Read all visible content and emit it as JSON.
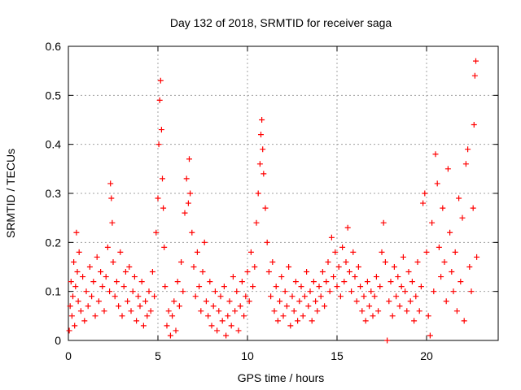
{
  "chart_data": {
    "type": "scatter",
    "title": "Day 132 of 2018, SRMTID for receiver saga",
    "xlabel": "GPS time / hours",
    "ylabel": "SRMTID / TECUs",
    "xlim": [
      0,
      24
    ],
    "ylim": [
      0,
      0.6
    ],
    "xticks": [
      0,
      5,
      10,
      15,
      20
    ],
    "xtick_labels": [
      "0",
      "5",
      "10",
      "15",
      "20"
    ],
    "yticks": [
      0,
      0.1,
      0.2,
      0.3,
      0.4,
      0.5,
      0.6
    ],
    "ytick_labels": [
      "0",
      "0.1",
      "0.2",
      "0.3",
      "0.4",
      "0.5",
      "0.6"
    ],
    "grid": true,
    "marker": "plus",
    "color": "#ff0000",
    "series": [
      {
        "name": "SRMTID",
        "points": [
          [
            0.05,
            0.02
          ],
          [
            0.1,
            0.07
          ],
          [
            0.15,
            0.12
          ],
          [
            0.2,
            0.05
          ],
          [
            0.25,
            0.09
          ],
          [
            0.3,
            0.16
          ],
          [
            0.35,
            0.03
          ],
          [
            0.4,
            0.11
          ],
          [
            0.45,
            0.22
          ],
          [
            0.5,
            0.14
          ],
          [
            0.55,
            0.08
          ],
          [
            0.6,
            0.18
          ],
          [
            0.7,
            0.06
          ],
          [
            0.8,
            0.13
          ],
          [
            0.9,
            0.04
          ],
          [
            1.0,
            0.1
          ],
          [
            1.1,
            0.07
          ],
          [
            1.2,
            0.15
          ],
          [
            1.3,
            0.09
          ],
          [
            1.4,
            0.12
          ],
          [
            1.5,
            0.05
          ],
          [
            1.6,
            0.17
          ],
          [
            1.7,
            0.08
          ],
          [
            1.8,
            0.14
          ],
          [
            1.9,
            0.11
          ],
          [
            2.0,
            0.06
          ],
          [
            2.1,
            0.13
          ],
          [
            2.2,
            0.19
          ],
          [
            2.3,
            0.1
          ],
          [
            2.35,
            0.32
          ],
          [
            2.4,
            0.29
          ],
          [
            2.45,
            0.24
          ],
          [
            2.5,
            0.16
          ],
          [
            2.6,
            0.09
          ],
          [
            2.7,
            0.12
          ],
          [
            2.8,
            0.07
          ],
          [
            2.9,
            0.18
          ],
          [
            3.0,
            0.05
          ],
          [
            3.1,
            0.11
          ],
          [
            3.2,
            0.14
          ],
          [
            3.3,
            0.08
          ],
          [
            3.4,
            0.15
          ],
          [
            3.5,
            0.06
          ],
          [
            3.6,
            0.1
          ],
          [
            3.7,
            0.13
          ],
          [
            3.8,
            0.04
          ],
          [
            3.9,
            0.09
          ],
          [
            4.0,
            0.07
          ],
          [
            4.1,
            0.12
          ],
          [
            4.2,
            0.03
          ],
          [
            4.3,
            0.08
          ],
          [
            4.4,
            0.05
          ],
          [
            4.5,
            0.1
          ],
          [
            4.6,
            0.06
          ],
          [
            4.7,
            0.14
          ],
          [
            4.8,
            0.09
          ],
          [
            4.9,
            0.22
          ],
          [
            5.0,
            0.29
          ],
          [
            5.05,
            0.4
          ],
          [
            5.1,
            0.49
          ],
          [
            5.15,
            0.53
          ],
          [
            5.2,
            0.43
          ],
          [
            5.25,
            0.33
          ],
          [
            5.3,
            0.27
          ],
          [
            5.35,
            0.19
          ],
          [
            5.4,
            0.11
          ],
          [
            5.5,
            0.03
          ],
          [
            5.6,
            0.06
          ],
          [
            5.7,
            0.01
          ],
          [
            5.8,
            0.05
          ],
          [
            5.9,
            0.08
          ],
          [
            6.0,
            0.02
          ],
          [
            6.1,
            0.12
          ],
          [
            6.2,
            0.07
          ],
          [
            6.3,
            0.16
          ],
          [
            6.4,
            0.1
          ],
          [
            6.5,
            0.26
          ],
          [
            6.6,
            0.33
          ],
          [
            6.7,
            0.28
          ],
          [
            6.75,
            0.37
          ],
          [
            6.8,
            0.3
          ],
          [
            6.9,
            0.22
          ],
          [
            7.0,
            0.15
          ],
          [
            7.1,
            0.09
          ],
          [
            7.2,
            0.18
          ],
          [
            7.3,
            0.11
          ],
          [
            7.4,
            0.06
          ],
          [
            7.5,
            0.14
          ],
          [
            7.6,
            0.2
          ],
          [
            7.7,
            0.08
          ],
          [
            7.8,
            0.05
          ],
          [
            7.9,
            0.12
          ],
          [
            8.0,
            0.03
          ],
          [
            8.1,
            0.07
          ],
          [
            8.2,
            0.1
          ],
          [
            8.3,
            0.02
          ],
          [
            8.4,
            0.06
          ],
          [
            8.5,
            0.09
          ],
          [
            8.6,
            0.04
          ],
          [
            8.7,
            0.11
          ],
          [
            8.8,
            0.01
          ],
          [
            8.9,
            0.05
          ],
          [
            9.0,
            0.08
          ],
          [
            9.1,
            0.03
          ],
          [
            9.2,
            0.13
          ],
          [
            9.3,
            0.06
          ],
          [
            9.4,
            0.1
          ],
          [
            9.5,
            0.02
          ],
          [
            9.6,
            0.07
          ],
          [
            9.7,
            0.12
          ],
          [
            9.8,
            0.05
          ],
          [
            9.9,
            0.09
          ],
          [
            10.0,
            0.14
          ],
          [
            10.1,
            0.08
          ],
          [
            10.2,
            0.18
          ],
          [
            10.3,
            0.11
          ],
          [
            10.4,
            0.15
          ],
          [
            10.5,
            0.24
          ],
          [
            10.6,
            0.3
          ],
          [
            10.7,
            0.36
          ],
          [
            10.75,
            0.42
          ],
          [
            10.8,
            0.45
          ],
          [
            10.85,
            0.39
          ],
          [
            10.9,
            0.34
          ],
          [
            11.0,
            0.27
          ],
          [
            11.1,
            0.2
          ],
          [
            11.2,
            0.14
          ],
          [
            11.3,
            0.09
          ],
          [
            11.4,
            0.16
          ],
          [
            11.5,
            0.06
          ],
          [
            11.6,
            0.11
          ],
          [
            11.7,
            0.04
          ],
          [
            11.8,
            0.08
          ],
          [
            11.9,
            0.13
          ],
          [
            12.0,
            0.05
          ],
          [
            12.1,
            0.1
          ],
          [
            12.2,
            0.07
          ],
          [
            12.3,
            0.15
          ],
          [
            12.4,
            0.03
          ],
          [
            12.5,
            0.09
          ],
          [
            12.6,
            0.06
          ],
          [
            12.7,
            0.12
          ],
          [
            12.8,
            0.04
          ],
          [
            12.9,
            0.08
          ],
          [
            13.0,
            0.11
          ],
          [
            13.1,
            0.05
          ],
          [
            13.2,
            0.09
          ],
          [
            13.3,
            0.14
          ],
          [
            13.4,
            0.07
          ],
          [
            13.5,
            0.1
          ],
          [
            13.6,
            0.04
          ],
          [
            13.7,
            0.12
          ],
          [
            13.8,
            0.08
          ],
          [
            13.9,
            0.06
          ],
          [
            14.0,
            0.11
          ],
          [
            14.1,
            0.09
          ],
          [
            14.2,
            0.14
          ],
          [
            14.3,
            0.07
          ],
          [
            14.4,
            0.12
          ],
          [
            14.5,
            0.16
          ],
          [
            14.6,
            0.1
          ],
          [
            14.7,
            0.21
          ],
          [
            14.8,
            0.13
          ],
          [
            14.9,
            0.18
          ],
          [
            15.0,
            0.11
          ],
          [
            15.1,
            0.15
          ],
          [
            15.2,
            0.09
          ],
          [
            15.3,
            0.19
          ],
          [
            15.4,
            0.12
          ],
          [
            15.5,
            0.16
          ],
          [
            15.6,
            0.23
          ],
          [
            15.7,
            0.14
          ],
          [
            15.8,
            0.1
          ],
          [
            15.9,
            0.18
          ],
          [
            16.0,
            0.13
          ],
          [
            16.1,
            0.08
          ],
          [
            16.2,
            0.15
          ],
          [
            16.3,
            0.11
          ],
          [
            16.4,
            0.06
          ],
          [
            16.5,
            0.09
          ],
          [
            16.6,
            0.04
          ],
          [
            16.7,
            0.12
          ],
          [
            16.8,
            0.07
          ],
          [
            16.9,
            0.1
          ],
          [
            17.0,
            0.05
          ],
          [
            17.1,
            0.09
          ],
          [
            17.2,
            0.13
          ],
          [
            17.3,
            0.06
          ],
          [
            17.4,
            0.11
          ],
          [
            17.5,
            0.18
          ],
          [
            17.6,
            0.24
          ],
          [
            17.7,
            0.16
          ],
          [
            17.8,
            0.0
          ],
          [
            17.9,
            0.08
          ],
          [
            18.0,
            0.12
          ],
          [
            18.1,
            0.05
          ],
          [
            18.2,
            0.15
          ],
          [
            18.3,
            0.09
          ],
          [
            18.4,
            0.13
          ],
          [
            18.5,
            0.07
          ],
          [
            18.6,
            0.11
          ],
          [
            18.7,
            0.17
          ],
          [
            18.8,
            0.1
          ],
          [
            18.9,
            0.06
          ],
          [
            19.0,
            0.14
          ],
          [
            19.1,
            0.08
          ],
          [
            19.2,
            0.12
          ],
          [
            19.3,
            0.04
          ],
          [
            19.4,
            0.09
          ],
          [
            19.5,
            0.16
          ],
          [
            19.6,
            0.06
          ],
          [
            19.7,
            0.11
          ],
          [
            19.8,
            0.28
          ],
          [
            19.9,
            0.3
          ],
          [
            20.0,
            0.18
          ],
          [
            20.1,
            0.05
          ],
          [
            20.2,
            0.01
          ],
          [
            20.3,
            0.24
          ],
          [
            20.4,
            0.1
          ],
          [
            20.5,
            0.38
          ],
          [
            20.6,
            0.32
          ],
          [
            20.7,
            0.19
          ],
          [
            20.8,
            0.13
          ],
          [
            20.9,
            0.27
          ],
          [
            21.0,
            0.16
          ],
          [
            21.1,
            0.08
          ],
          [
            21.2,
            0.35
          ],
          [
            21.3,
            0.22
          ],
          [
            21.4,
            0.14
          ],
          [
            21.5,
            0.1
          ],
          [
            21.6,
            0.18
          ],
          [
            21.7,
            0.06
          ],
          [
            21.8,
            0.29
          ],
          [
            21.9,
            0.12
          ],
          [
            22.0,
            0.25
          ],
          [
            22.1,
            0.04
          ],
          [
            22.2,
            0.36
          ],
          [
            22.3,
            0.39
          ],
          [
            22.4,
            0.15
          ],
          [
            22.5,
            0.1
          ],
          [
            22.6,
            0.27
          ],
          [
            22.65,
            0.44
          ],
          [
            22.7,
            0.54
          ],
          [
            22.75,
            0.57
          ],
          [
            22.8,
            0.17
          ]
        ]
      }
    ]
  }
}
